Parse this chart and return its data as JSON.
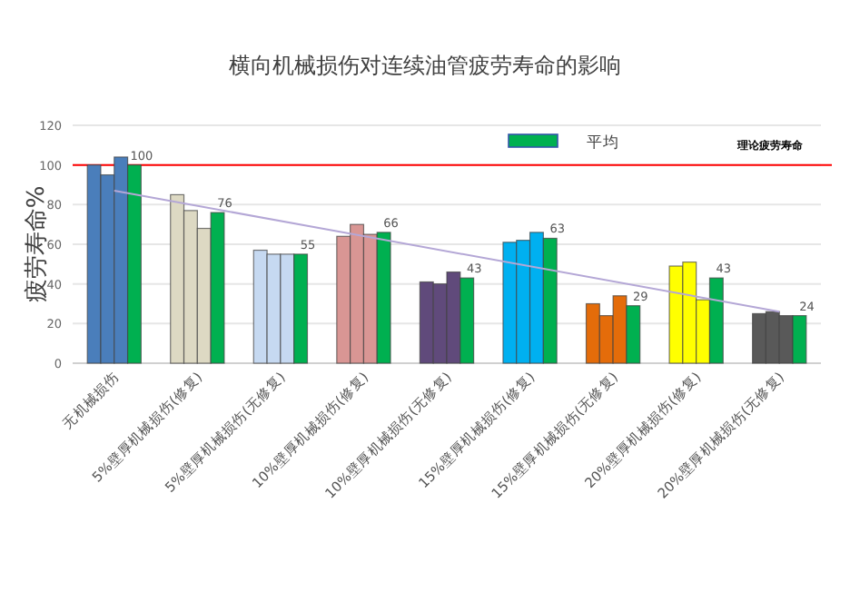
{
  "chart_data": {
    "type": "bar",
    "title": "横向机械损伤对连续油管疲劳寿命的影响",
    "ylabel": "疲劳寿命%",
    "categories": [
      "无机械损伤",
      "5%壁厚机械损伤(修复)",
      "5%壁厚机械损伤(无修复)",
      "10%壁厚机械损伤(修复)",
      "10%壁厚机械损伤(无修复)",
      "15%壁厚机械损伤(修复)",
      "15%壁厚机械损伤(无修复)",
      "20%壁厚机械损伤(修复)",
      "20%壁厚机械损伤(无修复)"
    ],
    "series": [
      {
        "colors": [
          "#4a7ebb",
          "#ddd9c3",
          "#c6d9f1",
          "#d99694",
          "#604a7b",
          "#00b0f0",
          "#e46c0a",
          "#ffff00",
          "#595959"
        ],
        "values": [
          100,
          85,
          57,
          64,
          41,
          61,
          30,
          49,
          25
        ]
      },
      {
        "colors": [
          "#4a7ebb",
          "#ddd9c3",
          "#c6d9f1",
          "#d99694",
          "#604a7b",
          "#00b0f0",
          "#e46c0a",
          "#ffff00",
          "#595959"
        ],
        "values": [
          95,
          77,
          55,
          70,
          40,
          62,
          24,
          51,
          26
        ]
      },
      {
        "colors": [
          "#4a7ebb",
          "#ddd9c3",
          "#c6d9f1",
          "#d99694",
          "#604a7b",
          "#00b0f0",
          "#e46c0a",
          "#ffff00",
          "#595959"
        ],
        "values": [
          104,
          68,
          55,
          65,
          46,
          66,
          34,
          32,
          24
        ]
      },
      {
        "name": "平均",
        "color": "#00b050",
        "values": [
          100,
          76,
          55,
          66,
          43,
          63,
          29,
          43,
          24
        ],
        "value_labels": [
          "100",
          "76",
          "55",
          "66",
          "43",
          "63",
          "29",
          "43",
          "24"
        ]
      },
      {
        "type": "line",
        "color": "#b4a7d6",
        "x": [
          "无机械损伤",
          "20%壁厚机械损伤(无修复)"
        ],
        "values": [
          87,
          26
        ]
      }
    ],
    "ylim": [
      0,
      120
    ],
    "yticks": [
      0,
      20,
      40,
      60,
      80,
      100,
      120
    ],
    "grid": "y",
    "legend": "top right",
    "ref_lines": [
      {
        "axis": "y",
        "value": 100,
        "label": "理论疲劳寿命",
        "color": "#ff0000"
      }
    ]
  }
}
